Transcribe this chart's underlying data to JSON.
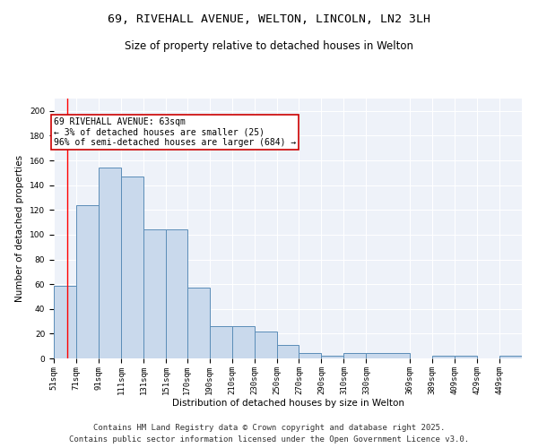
{
  "title_line1": "69, RIVEHALL AVENUE, WELTON, LINCOLN, LN2 3LH",
  "title_line2": "Size of property relative to detached houses in Welton",
  "xlabel": "Distribution of detached houses by size in Welton",
  "ylabel": "Number of detached properties",
  "bar_color": "#c9d9ec",
  "bar_edge_color": "#5b8db8",
  "background_color": "#eef2f9",
  "grid_color": "#ffffff",
  "annotation_box_color": "#cc0000",
  "annotation_text": "69 RIVEHALL AVENUE: 63sqm\n← 3% of detached houses are smaller (25)\n96% of semi-detached houses are larger (684) →",
  "redline_x": 63,
  "categories": [
    "51sqm",
    "71sqm",
    "91sqm",
    "111sqm",
    "131sqm",
    "151sqm",
    "170sqm",
    "190sqm",
    "210sqm",
    "230sqm",
    "250sqm",
    "270sqm",
    "290sqm",
    "310sqm",
    "330sqm",
    "369sqm",
    "389sqm",
    "409sqm",
    "429sqm",
    "449sqm"
  ],
  "bin_edges": [
    51,
    71,
    91,
    111,
    131,
    151,
    170,
    190,
    210,
    230,
    250,
    270,
    290,
    310,
    330,
    369,
    389,
    409,
    429,
    449
  ],
  "values": [
    59,
    124,
    154,
    147,
    104,
    104,
    57,
    26,
    26,
    22,
    11,
    4,
    2,
    4,
    4,
    0,
    2,
    2,
    0,
    2
  ],
  "ylim": [
    0,
    210
  ],
  "yticks": [
    0,
    20,
    40,
    60,
    80,
    100,
    120,
    140,
    160,
    180,
    200
  ],
  "footer_line1": "Contains HM Land Registry data © Crown copyright and database right 2025.",
  "footer_line2": "Contains public sector information licensed under the Open Government Licence v3.0.",
  "title_fontsize": 9.5,
  "subtitle_fontsize": 8.5,
  "axis_label_fontsize": 7.5,
  "tick_fontsize": 6.5,
  "annotation_fontsize": 7,
  "footer_fontsize": 6.5
}
